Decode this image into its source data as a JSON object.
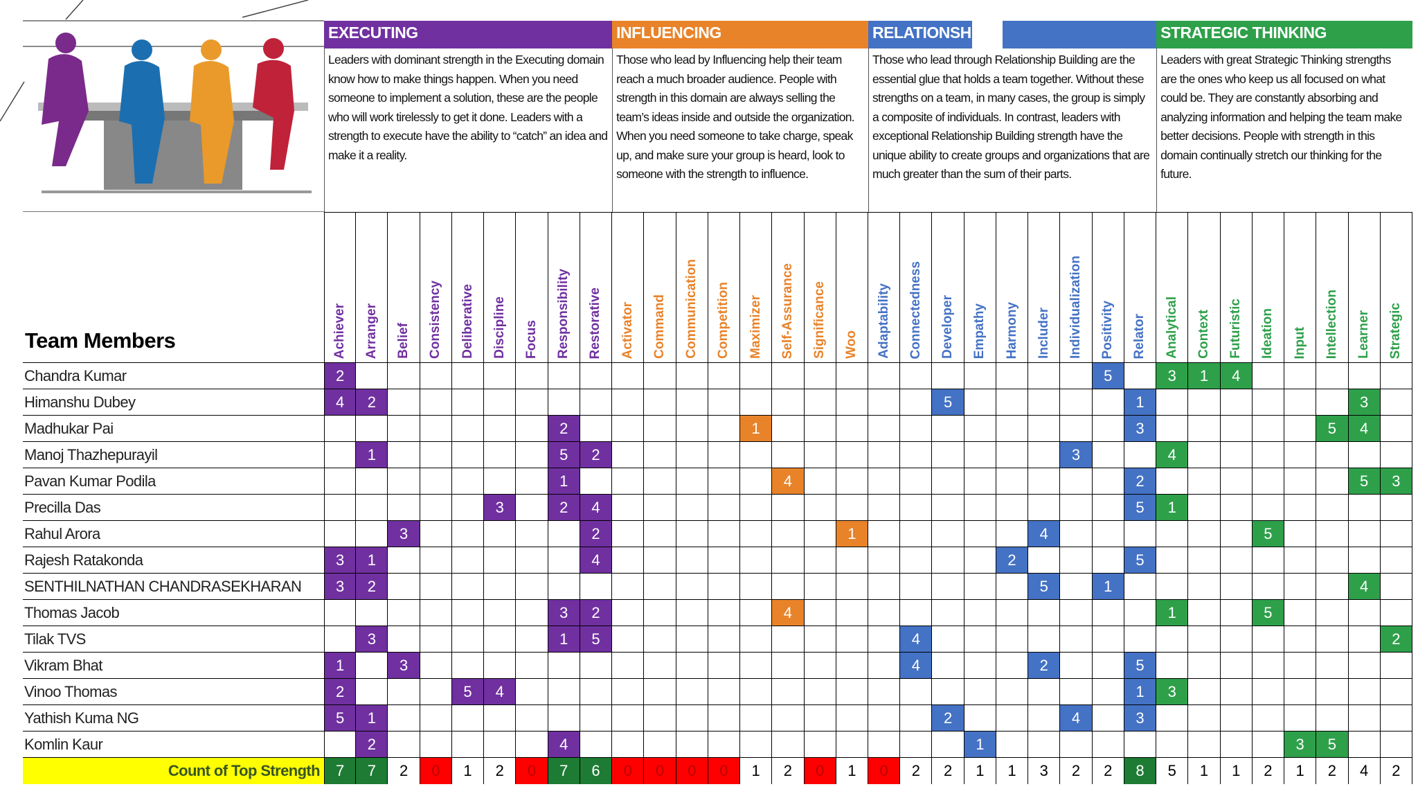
{
  "title_column": "Team Members",
  "domains": [
    {
      "name": "EXECUTING",
      "color": "#7030a0",
      "description": "Leaders with dominant strength in the Executing domain know how to make things happen. When you need someone to implement a solution, these are the people who will work tirelessly to get it done. Leaders with a strength to execute have the ability to “catch” an idea and make it a reality.",
      "themes": [
        "Achiever",
        "Arranger",
        "Belief",
        "Consistency",
        "Deliberative",
        "Discipline",
        "Focus",
        "Responsibility",
        "Restorative"
      ]
    },
    {
      "name": "INFLUENCING",
      "color": "#e8832a",
      "description": "Those who lead by Influencing help their team reach a much broader audience. People with strength in this domain are always selling the team’s ideas inside and outside the organization. When you need someone to take charge, speak up, and make sure your group is heard, look to someone with the strength to influence.",
      "themes": [
        "Activator",
        "Command",
        "Communication",
        "Competition",
        "Maximizer",
        "Self-Assurance",
        "Significance",
        "Woo"
      ]
    },
    {
      "name": "RELATIONSH",
      "color": "#4472c4",
      "description": "Those who lead through Relationship Building are the essential glue that holds a team together. Without these strengths on a team, in many cases, the group is simply a composite of individuals. In contrast, leaders with exceptional Relationship Building strength have the unique ability to create groups and organizations that are much greater than the sum of their parts.",
      "themes": [
        "Adaptability",
        "Connectedness",
        "Developer",
        "Empathy",
        "Harmony",
        "Includer",
        "Individualization",
        "Positivity",
        "Relator"
      ]
    },
    {
      "name": "STRATEGIC THINKING",
      "color": "#2ea04a",
      "description": "Leaders with great Strategic Thinking strengths are the ones who keep us all focused on what could be. They are constantly absorbing and analyzing information and helping the team make better decisions. People with strength in this domain continually stretch our thinking for the future.",
      "themes": [
        "Analytical",
        "Context",
        "Futuristic",
        "Ideation",
        "Input",
        "Intellection",
        "Learner",
        "Strategic"
      ]
    }
  ],
  "members": [
    {
      "name": "Chandra Kumar",
      "scores": [
        2,
        null,
        null,
        null,
        null,
        null,
        null,
        null,
        null,
        null,
        null,
        null,
        null,
        null,
        null,
        null,
        null,
        null,
        null,
        null,
        null,
        null,
        null,
        null,
        5,
        null,
        3,
        1,
        4,
        null,
        null,
        null,
        null,
        null
      ]
    },
    {
      "name": "Himanshu Dubey",
      "scores": [
        4,
        2,
        null,
        null,
        null,
        null,
        null,
        null,
        null,
        null,
        null,
        null,
        null,
        null,
        null,
        null,
        null,
        null,
        null,
        5,
        null,
        null,
        null,
        null,
        null,
        1,
        null,
        null,
        null,
        null,
        null,
        null,
        3,
        null
      ]
    },
    {
      "name": "Madhukar Pai",
      "scores": [
        null,
        null,
        null,
        null,
        null,
        null,
        null,
        2,
        null,
        null,
        null,
        null,
        null,
        1,
        null,
        null,
        null,
        null,
        null,
        null,
        null,
        null,
        null,
        null,
        null,
        3,
        null,
        null,
        null,
        null,
        null,
        5,
        4,
        null
      ]
    },
    {
      "name": "Manoj Thazhepurayil",
      "scores": [
        null,
        1,
        null,
        null,
        null,
        null,
        null,
        5,
        2,
        null,
        null,
        null,
        null,
        null,
        null,
        null,
        null,
        null,
        null,
        null,
        null,
        null,
        null,
        3,
        null,
        null,
        4,
        null,
        null,
        null,
        null,
        null,
        null,
        null
      ]
    },
    {
      "name": "Pavan Kumar Podila",
      "scores": [
        null,
        null,
        null,
        null,
        null,
        null,
        null,
        1,
        null,
        null,
        null,
        null,
        null,
        null,
        4,
        null,
        null,
        null,
        null,
        null,
        null,
        null,
        null,
        null,
        null,
        2,
        null,
        null,
        null,
        null,
        null,
        null,
        5,
        3
      ]
    },
    {
      "name": "Precilla Das",
      "scores": [
        null,
        null,
        null,
        null,
        null,
        3,
        null,
        2,
        4,
        null,
        null,
        null,
        null,
        null,
        null,
        null,
        null,
        null,
        null,
        null,
        null,
        null,
        null,
        null,
        null,
        5,
        1,
        null,
        null,
        null,
        null,
        null,
        null,
        null
      ]
    },
    {
      "name": "Rahul Arora",
      "scores": [
        null,
        null,
        3,
        null,
        null,
        null,
        null,
        null,
        2,
        null,
        null,
        null,
        null,
        null,
        null,
        null,
        1,
        null,
        null,
        null,
        null,
        null,
        4,
        null,
        null,
        null,
        null,
        null,
        null,
        5,
        null,
        null,
        null,
        null
      ]
    },
    {
      "name": "Rajesh Ratakonda",
      "scores": [
        3,
        1,
        null,
        null,
        null,
        null,
        null,
        null,
        4,
        null,
        null,
        null,
        null,
        null,
        null,
        null,
        null,
        null,
        null,
        null,
        null,
        2,
        null,
        null,
        null,
        5,
        null,
        null,
        null,
        null,
        null,
        null,
        null,
        null
      ]
    },
    {
      "name": "SENTHILNATHAN CHANDRASEKHARAN",
      "scores": [
        3,
        2,
        null,
        null,
        null,
        null,
        null,
        null,
        null,
        null,
        null,
        null,
        null,
        null,
        null,
        null,
        null,
        null,
        null,
        null,
        null,
        null,
        5,
        null,
        1,
        null,
        null,
        null,
        null,
        null,
        null,
        null,
        4,
        null
      ]
    },
    {
      "name": "Thomas Jacob",
      "scores": [
        null,
        null,
        null,
        null,
        null,
        null,
        null,
        3,
        2,
        null,
        null,
        null,
        null,
        null,
        4,
        null,
        null,
        null,
        null,
        null,
        null,
        null,
        null,
        null,
        null,
        null,
        1,
        null,
        null,
        5,
        null,
        null,
        null,
        null
      ]
    },
    {
      "name": "Tilak TVS",
      "scores": [
        null,
        3,
        null,
        null,
        null,
        null,
        null,
        1,
        5,
        null,
        null,
        null,
        null,
        null,
        null,
        null,
        null,
        null,
        4,
        null,
        null,
        null,
        null,
        null,
        null,
        null,
        null,
        null,
        null,
        null,
        null,
        null,
        null,
        2
      ]
    },
    {
      "name": "Vikram Bhat",
      "scores": [
        1,
        null,
        3,
        null,
        null,
        null,
        null,
        null,
        null,
        null,
        null,
        null,
        null,
        null,
        null,
        null,
        null,
        null,
        4,
        null,
        null,
        null,
        2,
        null,
        null,
        5,
        null,
        null,
        null,
        null,
        null,
        null,
        null,
        null
      ]
    },
    {
      "name": "Vinoo Thomas",
      "scores": [
        2,
        null,
        null,
        null,
        5,
        4,
        null,
        null,
        null,
        null,
        null,
        null,
        null,
        null,
        null,
        null,
        null,
        null,
        null,
        null,
        null,
        null,
        null,
        null,
        null,
        1,
        3,
        null,
        null,
        null,
        null,
        null,
        null,
        null
      ]
    },
    {
      "name": "Yathish Kuma NG",
      "scores": [
        5,
        1,
        null,
        null,
        null,
        null,
        null,
        null,
        null,
        null,
        null,
        null,
        null,
        null,
        null,
        null,
        null,
        null,
        null,
        2,
        null,
        null,
        null,
        4,
        null,
        3,
        null,
        null,
        null,
        null,
        null,
        null,
        null,
        null
      ]
    },
    {
      "name": "Komlin Kaur",
      "scores": [
        null,
        2,
        null,
        null,
        null,
        null,
        null,
        4,
        null,
        null,
        null,
        null,
        null,
        null,
        null,
        null,
        null,
        null,
        null,
        null,
        1,
        null,
        null,
        null,
        null,
        null,
        null,
        null,
        null,
        null,
        3,
        5,
        null,
        null
      ]
    }
  ],
  "footer": {
    "label": "Count of Top Strength",
    "counts": [
      7,
      7,
      2,
      0,
      1,
      2,
      0,
      7,
      6,
      0,
      0,
      0,
      0,
      1,
      2,
      0,
      1,
      0,
      2,
      2,
      1,
      1,
      3,
      2,
      2,
      8,
      5,
      1,
      1,
      2,
      1,
      2,
      4,
      2
    ]
  }
}
